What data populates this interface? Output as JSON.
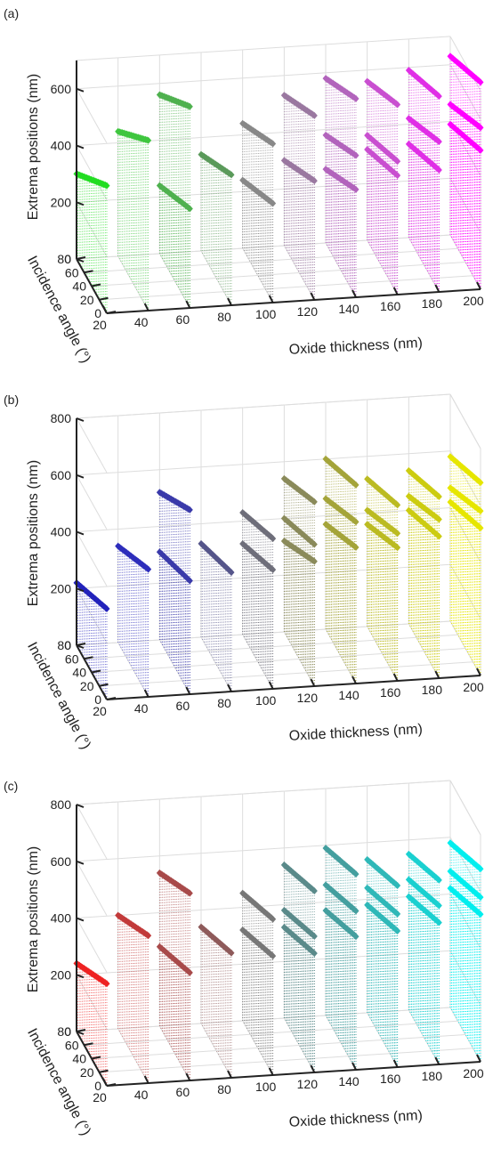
{
  "panels": [
    {
      "label": "(a)",
      "chart_data": {
        "type": "scatter3d",
        "x_label": "Oxide thickness (nm)",
        "y_label": "Incidence angle (°)",
        "z_label": "Extrema positions (nm)",
        "x_ticks": [
          "20",
          "40",
          "60",
          "80",
          "100",
          "120",
          "140",
          "160",
          "180",
          "200"
        ],
        "y_ticks": [
          "0",
          "20",
          "40",
          "60",
          "80"
        ],
        "z_ticks": [
          "0",
          "200",
          "400",
          "600"
        ],
        "xlim": [
          20,
          200
        ],
        "ylim": [
          0,
          80
        ],
        "zlim": [
          0,
          700
        ],
        "start_color": "#22dd22",
        "end_color": "#ff00ff",
        "grid": true,
        "series": [
          {
            "x": 20,
            "color": "#22dd22",
            "segments": [
              [
                450,
                300
              ]
            ]
          },
          {
            "x": 40,
            "color": "#3fc63f",
            "segments": [
              [
                600,
                440
              ]
            ]
          },
          {
            "x": 60,
            "color": "#4fb14f",
            "segments": [
              [
                710,
                560
              ],
              [
                350,
                240
              ]
            ]
          },
          {
            "x": 80,
            "color": "#5a9a5a",
            "segments": [
              [
                460,
                340
              ]
            ]
          },
          {
            "x": 100,
            "color": "#888888",
            "segments": [
              [
                560,
                440
              ],
              [
                350,
                240
              ]
            ]
          },
          {
            "x": 120,
            "color": "#9a78a0",
            "segments": [
              [
                650,
                530
              ],
              [
                420,
                300
              ]
            ]
          },
          {
            "x": 140,
            "color": "#b264bc",
            "segments": [
              [
                700,
                580
              ],
              [
                500,
                380
              ],
              [
                380,
                260
              ]
            ]
          },
          {
            "x": 160,
            "color": "#c94fd0",
            "segments": [
              [
                670,
                560
              ],
              [
                470,
                370
              ],
              [
                420,
                320
              ]
            ]
          },
          {
            "x": 180,
            "color": "#e02fe6",
            "segments": [
              [
                690,
                590
              ],
              [
                530,
                420
              ],
              [
                430,
                330
              ]
            ]
          },
          {
            "x": 200,
            "color": "#ff00ff",
            "segments": [
              [
                730,
                630
              ],
              [
                570,
                460
              ],
              [
                490,
                390
              ]
            ]
          }
        ]
      }
    },
    {
      "label": "(b)",
      "chart_data": {
        "type": "scatter3d",
        "x_label": "Oxide thickness (nm)",
        "y_label": "Incidence angle (°)",
        "z_label": "Extrema positions (nm)",
        "x_ticks": [
          "20",
          "40",
          "60",
          "80",
          "100",
          "120",
          "140",
          "160",
          "180",
          "200"
        ],
        "y_ticks": [
          "0",
          "20",
          "40",
          "60",
          "80"
        ],
        "z_ticks": [
          "0",
          "200",
          "400",
          "600",
          "800"
        ],
        "xlim": [
          20,
          200
        ],
        "ylim": [
          0,
          80
        ],
        "zlim": [
          0,
          800
        ],
        "start_color": "#2222bb",
        "end_color": "#e6e600",
        "grid": true,
        "series": [
          {
            "x": 20,
            "color": "#2222bb",
            "segments": [
              [
                320,
                220
              ]
            ]
          },
          {
            "x": 40,
            "color": "#2d2dbb",
            "segments": [
              [
                450,
                340
              ]
            ]
          },
          {
            "x": 60,
            "color": "#3a3aaa",
            "segments": [
              [
                650,
                520
              ],
              [
                400,
                310
              ]
            ]
          },
          {
            "x": 80,
            "color": "#55558a",
            "segments": [
              [
                420,
                330
              ]
            ]
          },
          {
            "x": 100,
            "color": "#6e6e7a",
            "segments": [
              [
                530,
                430
              ],
              [
                420,
                320
              ]
            ]
          },
          {
            "x": 120,
            "color": "#8a8a5a",
            "segments": [
              [
                650,
                540
              ],
              [
                500,
                400
              ],
              [
                440,
                320
              ]
            ]
          },
          {
            "x": 140,
            "color": "#a4a43a",
            "segments": [
              [
                700,
                600
              ],
              [
                570,
                460
              ],
              [
                480,
                370
              ]
            ]
          },
          {
            "x": 160,
            "color": "#bbbb22",
            "segments": [
              [
                620,
                520
              ],
              [
                520,
                410
              ],
              [
                470,
                360
              ]
            ]
          },
          {
            "x": 180,
            "color": "#cccc10",
            "segments": [
              [
                640,
                540
              ],
              [
                560,
                450
              ],
              [
                500,
                400
              ]
            ]
          },
          {
            "x": 200,
            "color": "#e6e600",
            "segments": [
              [
                680,
                580
              ],
              [
                580,
                470
              ],
              [
                520,
                420
              ]
            ]
          }
        ]
      }
    },
    {
      "label": "(c)",
      "chart_data": {
        "type": "scatter3d",
        "x_label": "Oxide thickness (nm)",
        "y_label": "Incidence angle (°)",
        "z_label": "Extrema positions (nm)",
        "x_ticks": [
          "20",
          "40",
          "60",
          "80",
          "100",
          "120",
          "140",
          "160",
          "180",
          "200"
        ],
        "y_ticks": [
          "0",
          "20",
          "40",
          "60",
          "80"
        ],
        "z_ticks": [
          "0",
          "200",
          "400",
          "600",
          "800"
        ],
        "xlim": [
          20,
          200
        ],
        "ylim": [
          0,
          80
        ],
        "zlim": [
          0,
          800
        ],
        "start_color": "#ee2222",
        "end_color": "#00eeee",
        "grid": true,
        "series": [
          {
            "x": 20,
            "color": "#ee2222",
            "segments": [
              [
                360,
                240
              ]
            ]
          },
          {
            "x": 40,
            "color": "#c23a3a",
            "segments": [
              [
                520,
                400
              ]
            ]
          },
          {
            "x": 60,
            "color": "#a84a4a",
            "segments": [
              [
                660,
                540
              ],
              [
                380,
                280
              ]
            ]
          },
          {
            "x": 80,
            "color": "#8e5a5a",
            "segments": [
              [
                440,
                340
              ]
            ]
          },
          {
            "x": 100,
            "color": "#777777",
            "segments": [
              [
                550,
                450
              ],
              [
                420,
                320
              ]
            ]
          },
          {
            "x": 120,
            "color": "#5a8a8a",
            "segments": [
              [
                640,
                540
              ],
              [
                480,
                380
              ],
              [
                420,
                320
              ]
            ]
          },
          {
            "x": 140,
            "color": "#449f9f",
            "segments": [
              [
                690,
                590
              ],
              [
                560,
                460
              ],
              [
                470,
                370
              ]
            ]
          },
          {
            "x": 160,
            "color": "#2fb8b8",
            "segments": [
              [
                640,
                540
              ],
              [
                540,
                440
              ],
              [
                480,
                380
              ]
            ]
          },
          {
            "x": 180,
            "color": "#1ad0d0",
            "segments": [
              [
                650,
                550
              ],
              [
                560,
                460
              ],
              [
                500,
                400
              ]
            ]
          },
          {
            "x": 200,
            "color": "#00eeee",
            "segments": [
              [
                680,
                580
              ],
              [
                580,
                480
              ],
              [
                520,
                420
              ]
            ]
          }
        ]
      }
    }
  ]
}
